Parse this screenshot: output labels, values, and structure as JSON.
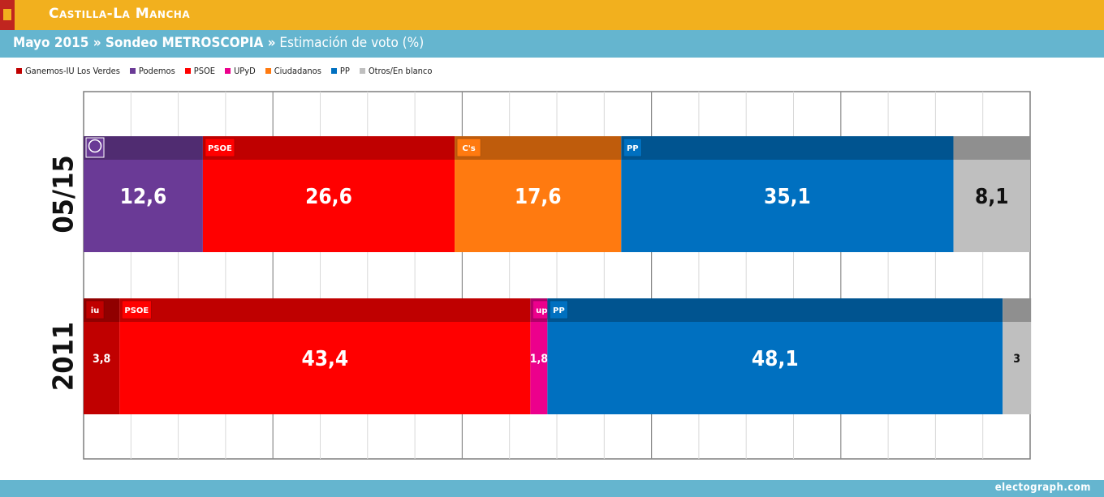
{
  "header": {
    "region": "Castilla-La Mancha",
    "subtitle_bold": "Mayo 2015 » Sondeo METROSCOPIA »",
    "subtitle_rest": " Estimación de voto (%)"
  },
  "footer": {
    "credit": "electograph.com"
  },
  "colors": {
    "Ganemos-IU Los Verdes": "#c00000",
    "Podemos": "#6a3a96",
    "PSOE": "#ff0000",
    "UPyD": "#ec008c",
    "Ciudadanos": "#ff7a10",
    "PP": "#0070c0",
    "Otros/En blanco": "#bfbfbf"
  },
  "chart_data": {
    "type": "bar",
    "orientation": "horizontal",
    "stacked": true,
    "xlim": [
      0,
      100
    ],
    "grid": true,
    "legend_position": "top-left",
    "legend": [
      "Ganemos-IU Los Verdes",
      "Podemos",
      "PSOE",
      "UPyD",
      "Ciudadanos",
      "PP",
      "Otros/En blanco"
    ],
    "rows": [
      {
        "label": "05/15",
        "segments": [
          {
            "party": "Podemos",
            "value": 12.6,
            "label": "12,6",
            "logo": "podemos-icon"
          },
          {
            "party": "PSOE",
            "value": 26.6,
            "label": "26,6",
            "logo_text": "PSOE"
          },
          {
            "party": "Ciudadanos",
            "value": 17.6,
            "label": "17,6",
            "logo_text": "C's"
          },
          {
            "party": "PP",
            "value": 35.1,
            "label": "35,1",
            "logo_text": "PP"
          },
          {
            "party": "Otros/En blanco",
            "value": 8.1,
            "label": "8,1"
          }
        ]
      },
      {
        "label": "2011",
        "segments": [
          {
            "party": "Ganemos-IU Los Verdes",
            "value": 3.8,
            "label": "3,8",
            "logo_text": "iu"
          },
          {
            "party": "PSOE",
            "value": 43.4,
            "label": "43,4",
            "logo_text": "PSOE"
          },
          {
            "party": "UPyD",
            "value": 1.8,
            "label": "1,8",
            "logo_text": "upd"
          },
          {
            "party": "PP",
            "value": 48.1,
            "label": "48,1",
            "logo_text": "PP"
          },
          {
            "party": "Otros/En blanco",
            "value": 3,
            "label": "3"
          }
        ]
      }
    ]
  }
}
